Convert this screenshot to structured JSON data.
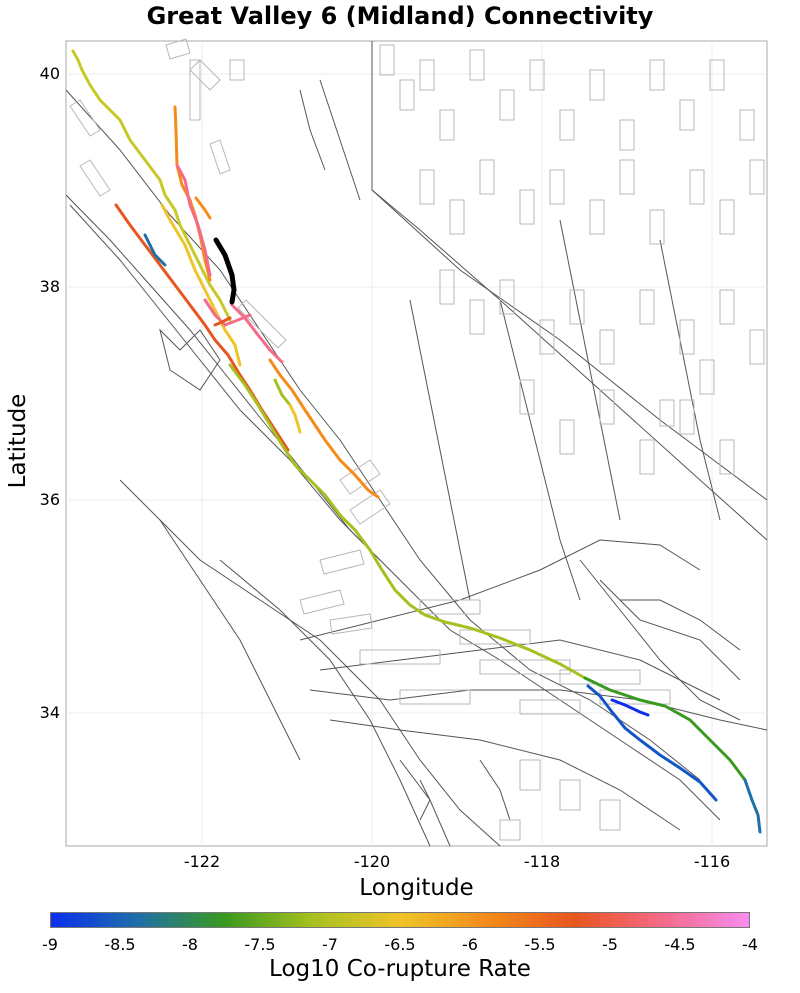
{
  "title": "Great Valley 6 (Midland) Connectivity",
  "x_axis": {
    "label": "Longitude",
    "ticks": [
      "-122",
      "-120",
      "-118",
      "-116"
    ]
  },
  "y_axis": {
    "label": "Latitude",
    "ticks": [
      "40",
      "38",
      "36",
      "34"
    ]
  },
  "colorbar": {
    "label": "Log10 Co-rupture Rate",
    "ticks": [
      "-9",
      "-8.5",
      "-8",
      "-7.5",
      "-7",
      "-6.5",
      "-6",
      "-5.5",
      "-5",
      "-4.5",
      "-4"
    ],
    "colors": [
      "#0a2fef",
      "#1f6fa8",
      "#3a9a20",
      "#a6c020",
      "#f0c428",
      "#f38c1a",
      "#e8561e",
      "#f46a88",
      "#f88cf0"
    ]
  },
  "map": {
    "lon_range": [
      -123.6,
      -115.3
    ],
    "lat_range": [
      32.7,
      40.3
    ],
    "source_section_color": "#000000"
  }
}
